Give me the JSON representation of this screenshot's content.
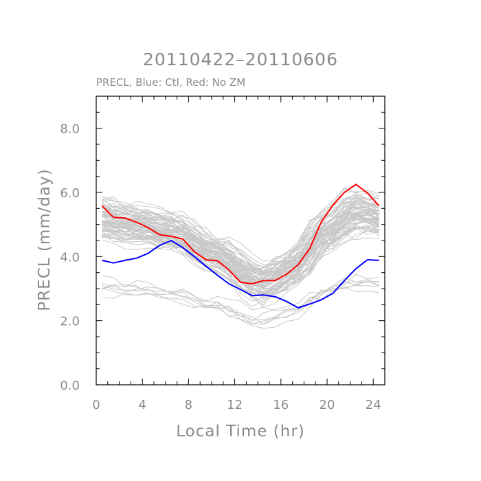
{
  "chart_data": {
    "type": "line",
    "title": "20110422–20110606",
    "subtitle": "PRECL, Blue: Ctl, Red: No ZM",
    "xlabel": "Local Time (hr)",
    "ylabel": "PRECL (mm/day)",
    "xlim": [
      0,
      25
    ],
    "ylim": [
      0,
      9
    ],
    "xticks": [
      0,
      4,
      8,
      12,
      16,
      20,
      24
    ],
    "xtick_labels": [
      "0",
      "4",
      "8",
      "12",
      "16",
      "20",
      "24"
    ],
    "yticks": [
      0,
      2,
      4,
      6,
      8
    ],
    "ytick_labels": [
      "0.0",
      "2.0",
      "4.0",
      "6.0",
      "8.0"
    ],
    "x": [
      0.5,
      1.5,
      2.5,
      3.5,
      4.5,
      5.5,
      6.5,
      7.5,
      8.5,
      9.5,
      10.5,
      11.5,
      12.5,
      13.5,
      14.5,
      15.5,
      16.5,
      17.5,
      18.5,
      19.5,
      20.5,
      21.5,
      22.5,
      23.5,
      24.5
    ],
    "series": [
      {
        "name": "Ctl",
        "color": "#0000ff",
        "values": [
          3.88,
          3.8,
          3.88,
          3.95,
          4.1,
          4.35,
          4.5,
          4.28,
          4.0,
          3.7,
          3.42,
          3.15,
          2.97,
          2.78,
          2.8,
          2.75,
          2.6,
          2.4,
          2.52,
          2.65,
          2.85,
          3.25,
          3.62,
          3.9,
          3.88
        ]
      },
      {
        "name": "No ZM",
        "color": "#ff0000",
        "values": [
          5.58,
          5.22,
          5.2,
          5.07,
          4.9,
          4.68,
          4.63,
          4.55,
          4.15,
          3.9,
          3.87,
          3.58,
          3.2,
          3.15,
          3.25,
          3.25,
          3.45,
          3.75,
          4.25,
          5.08,
          5.6,
          6.0,
          6.25,
          5.98,
          5.58
        ]
      }
    ],
    "ensemble": {
      "color": "#c8c8c8",
      "members": 80,
      "template_hours": [
        0,
        3,
        7,
        10,
        14.5,
        17,
        20,
        22.5,
        25
      ],
      "template_values": [
        5.2,
        5.0,
        4.75,
        4.1,
        3.15,
        3.6,
        4.8,
        5.4,
        5.2
      ]
    }
  }
}
